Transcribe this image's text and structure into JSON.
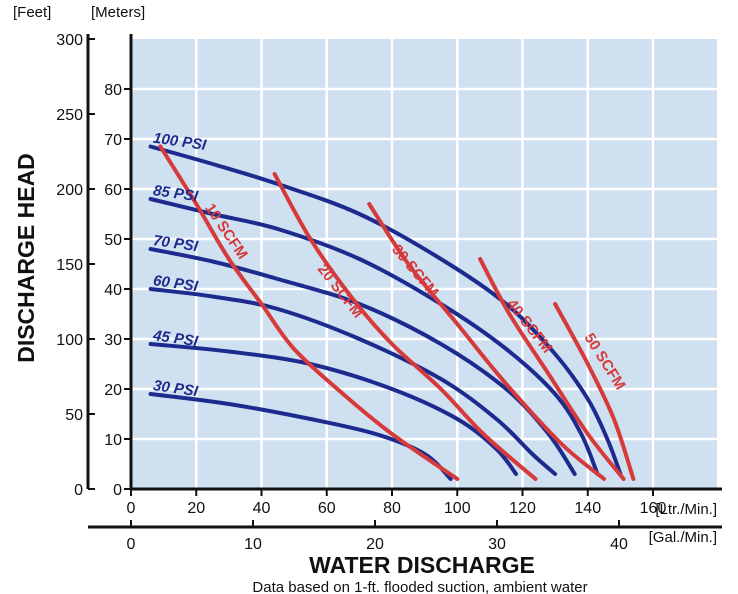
{
  "chart_data": {
    "type": "line",
    "title": "",
    "ylabel": "DISCHARGE HEAD",
    "xlabel": "WATER DISCHARGE",
    "note": "Data based on 1-ft. flooded suction, ambient water",
    "y_units": {
      "feet": "[Feet]",
      "meters": "[Meters]"
    },
    "x_units": {
      "lpm": "[Ltr./Min.]",
      "gpm": "[Gal./Min.]"
    },
    "meters_axis": {
      "range": [
        0,
        90
      ],
      "ticks": [
        "0",
        "10",
        "20",
        "30",
        "40",
        "50",
        "60",
        "70",
        "80"
      ]
    },
    "feet_axis": {
      "range": [
        0,
        300
      ],
      "ticks": [
        "0",
        "50",
        "100",
        "150",
        "200",
        "250",
        "300"
      ]
    },
    "lpm_axis": {
      "range": [
        0,
        180
      ],
      "ticks": [
        "0",
        "20",
        "40",
        "60",
        "80",
        "100",
        "120",
        "140",
        "160"
      ]
    },
    "gpm_axis": {
      "range": [
        0,
        46
      ],
      "ticks": [
        "0",
        "10",
        "20",
        "30",
        "40"
      ]
    },
    "grid": true,
    "background": "#cfe1f1",
    "psi_color": "#1d2b8e",
    "scfm_color": "#d63a3a",
    "psi_series": [
      {
        "name": "100 PSI",
        "points": [
          [
            6,
            68.5
          ],
          [
            25,
            65
          ],
          [
            45,
            61
          ],
          [
            70,
            55
          ],
          [
            95,
            46
          ],
          [
            115,
            37
          ],
          [
            130,
            27
          ],
          [
            140,
            18
          ],
          [
            146,
            10
          ],
          [
            150,
            3
          ]
        ]
      },
      {
        "name": "85 PSI",
        "points": [
          [
            6,
            58
          ],
          [
            25,
            55
          ],
          [
            45,
            52
          ],
          [
            70,
            46
          ],
          [
            95,
            37
          ],
          [
            115,
            28
          ],
          [
            130,
            19
          ],
          [
            138,
            11
          ],
          [
            143,
            3
          ]
        ]
      },
      {
        "name": "70 PSI",
        "points": [
          [
            6,
            48
          ],
          [
            25,
            45.5
          ],
          [
            45,
            42
          ],
          [
            70,
            37
          ],
          [
            95,
            29
          ],
          [
            115,
            20
          ],
          [
            128,
            11
          ],
          [
            136,
            3
          ]
        ]
      },
      {
        "name": "60 PSI",
        "points": [
          [
            6,
            40
          ],
          [
            25,
            38.5
          ],
          [
            45,
            36
          ],
          [
            70,
            30
          ],
          [
            95,
            22
          ],
          [
            112,
            14
          ],
          [
            123,
            7
          ],
          [
            130,
            3
          ]
        ]
      },
      {
        "name": "45 PSI",
        "points": [
          [
            6,
            29
          ],
          [
            30,
            27.5
          ],
          [
            55,
            25
          ],
          [
            80,
            20
          ],
          [
            100,
            14
          ],
          [
            112,
            8
          ],
          [
            118,
            3
          ]
        ]
      },
      {
        "name": "30 PSI",
        "points": [
          [
            6,
            19
          ],
          [
            30,
            17
          ],
          [
            55,
            14
          ],
          [
            75,
            11
          ],
          [
            90,
            7
          ],
          [
            98,
            2
          ]
        ]
      }
    ],
    "scfm_series": [
      {
        "name": "10 SCFM",
        "points": [
          [
            9,
            68.5
          ],
          [
            20,
            57
          ],
          [
            30,
            46
          ],
          [
            40,
            37
          ],
          [
            50,
            28
          ],
          [
            65,
            19
          ],
          [
            80,
            11
          ],
          [
            100,
            2
          ]
        ]
      },
      {
        "name": "20 SCFM",
        "points": [
          [
            44,
            63
          ],
          [
            55,
            50
          ],
          [
            68,
            38
          ],
          [
            80,
            29
          ],
          [
            95,
            20
          ],
          [
            108,
            11
          ],
          [
            124,
            2
          ]
        ]
      },
      {
        "name": "30 SCFM",
        "points": [
          [
            73,
            57
          ],
          [
            85,
            45
          ],
          [
            100,
            33
          ],
          [
            115,
            21
          ],
          [
            132,
            9
          ],
          [
            145,
            2
          ]
        ]
      },
      {
        "name": "40 SCFM",
        "points": [
          [
            107,
            46
          ],
          [
            116,
            35
          ],
          [
            128,
            23
          ],
          [
            140,
            11
          ],
          [
            151,
            2
          ]
        ]
      },
      {
        "name": "50 SCFM",
        "points": [
          [
            130,
            37
          ],
          [
            140,
            25
          ],
          [
            148,
            14
          ],
          [
            154,
            2
          ]
        ]
      }
    ],
    "psi_labels": [
      {
        "text": "100 PSI",
        "x": 6,
        "y": 68.5
      },
      {
        "text": "85 PSI",
        "x": 6,
        "y": 58
      },
      {
        "text": "70 PSI",
        "x": 6,
        "y": 48
      },
      {
        "text": "60 PSI",
        "x": 6,
        "y": 40
      },
      {
        "text": "45 PSI",
        "x": 6,
        "y": 29
      },
      {
        "text": "30 PSI",
        "x": 6,
        "y": 19
      }
    ],
    "scfm_labels": [
      {
        "text": "10 SCFM",
        "x": 28,
        "y": 51,
        "angle": 56
      },
      {
        "text": "20 SCFM",
        "x": 63,
        "y": 39,
        "angle": 52
      },
      {
        "text": "30 SCFM",
        "x": 86,
        "y": 43,
        "angle": 50
      },
      {
        "text": "40 SCFM",
        "x": 121,
        "y": 32,
        "angle": 52
      },
      {
        "text": "50 SCFM",
        "x": 144,
        "y": 25,
        "angle": 58
      }
    ]
  }
}
